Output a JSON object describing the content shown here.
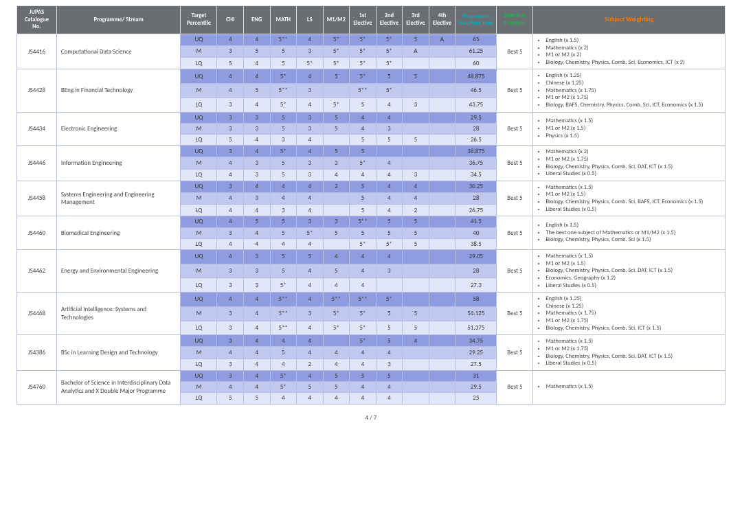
{
  "headers": {
    "no": "JUPAS Catalogue No.",
    "prog": "Programme/ Stream",
    "tp": "Target Percentile",
    "subs": [
      "CHI",
      "ENG",
      "MATH",
      "LS",
      "M1/M2",
      "1st Elective",
      "2nd Elective",
      "3rd Elective",
      "4th Elective"
    ],
    "pwt": "Programme Weighted Total",
    "sel": "Selection Principle",
    "sw": "Subject Weighting"
  },
  "footer": "4 / 7",
  "colors": {
    "header_bg": "#6a6e73",
    "header_fg": "#ffffff",
    "band_uq": "#8f9cdf",
    "band_m": "#c1c8ef",
    "band_lq": "#e2e6f9",
    "border": "#d9dde2",
    "pwt_hdr": "#00b2b2",
    "sel_hdr": "#24b24c",
    "sw_hdr": "#ff7a00"
  },
  "programmes": [
    {
      "no": "JS4416",
      "name": "Computational Data Science",
      "selection": "Best 5",
      "weighting": [
        "English (x 1.5)",
        "Mathematics (x 2)",
        "M1 or M2 (x 2)",
        "Biology, Chemistry, Physics, Comb. Sci, Economics, ICT (x 2)"
      ],
      "rows": [
        {
          "tp": "UQ",
          "v": [
            "4",
            "4",
            "5**",
            "4",
            "5*",
            "5*",
            "5*",
            "5",
            "A"
          ],
          "pwt": "65"
        },
        {
          "tp": "M",
          "v": [
            "3",
            "5",
            "5",
            "3",
            "5*",
            "5*",
            "5*",
            "A",
            ""
          ],
          "pwt": "61.25"
        },
        {
          "tp": "LQ",
          "v": [
            "5",
            "4",
            "5",
            "5*",
            "5*",
            "5*",
            "5*",
            "",
            ""
          ],
          "pwt": "60"
        }
      ]
    },
    {
      "no": "JS4428",
      "name": "BEng in Financial Technology",
      "selection": "Best 5",
      "weighting": [
        "English (x 1.25)",
        "Chinese (x 1.25)",
        "Mathematics (x 1.75)",
        "M1 or M2 (x 1.75)",
        "Biology, BAFS, Chemistry,  Physics, Comb. Sci, ICT, Economics (x 1.5)"
      ],
      "rows": [
        {
          "tp": "UQ",
          "v": [
            "4",
            "4",
            "5*",
            "4",
            "5",
            "5*",
            "5",
            "5",
            ""
          ],
          "pwt": "48.875"
        },
        {
          "tp": "M",
          "v": [
            "4",
            "5",
            "5**",
            "3",
            "",
            "5**",
            "5*",
            "",
            ""
          ],
          "pwt": "46.5"
        },
        {
          "tp": "LQ",
          "v": [
            "3",
            "4",
            "5*",
            "4",
            "5*",
            "5",
            "4",
            "3",
            ""
          ],
          "pwt": "43.75"
        }
      ]
    },
    {
      "no": "JS4434",
      "name": "Electronic Engineering",
      "selection": "Best 5",
      "weighting": [
        "Mathematics (x 1.5)",
        "M1 or M2 (x 1.5)",
        "Physics (x 1.5)"
      ],
      "rows": [
        {
          "tp": "UQ",
          "v": [
            "3",
            "3",
            "5",
            "3",
            "5",
            "4",
            "4",
            "",
            ""
          ],
          "pwt": "29.5"
        },
        {
          "tp": "M",
          "v": [
            "3",
            "3",
            "5",
            "3",
            "5",
            "4",
            "3",
            "",
            ""
          ],
          "pwt": "28"
        },
        {
          "tp": "LQ",
          "v": [
            "5",
            "4",
            "3",
            "4",
            "",
            "5",
            "5",
            "5",
            ""
          ],
          "pwt": "26.5"
        }
      ]
    },
    {
      "no": "JS4446",
      "name": "Information Engineering",
      "selection": "Best 5",
      "weighting": [
        "Mathematics (x 2)",
        "M1 or M2 (x 1.75)",
        "Biology, Chemistry, Physics, Comb. Sci, DAT, ICT (x 1.5)",
        "Liberal Studies (x 0.5)"
      ],
      "rows": [
        {
          "tp": "UQ",
          "v": [
            "3",
            "4",
            "5*",
            "4",
            "5",
            "5",
            "",
            "",
            ""
          ],
          "pwt": "38.875"
        },
        {
          "tp": "M",
          "v": [
            "4",
            "3",
            "5",
            "3",
            "3",
            "5*",
            "4",
            "",
            ""
          ],
          "pwt": "36.75"
        },
        {
          "tp": "LQ",
          "v": [
            "4",
            "3",
            "5",
            "3",
            "4",
            "4",
            "4",
            "3",
            ""
          ],
          "pwt": "34.5"
        }
      ]
    },
    {
      "no": "JS4458",
      "name": "Systems Engineering and Engineering Management",
      "selection": "Best 5",
      "weighting": [
        "Mathematics (x 1.5)",
        "M1 or M2 (x 1.5)",
        "Biology, Chemistry, Physics, Comb. Sci, BAFS, ICT, Economics (x 1.5)",
        "Liberal Studies (x 0.5)"
      ],
      "rows": [
        {
          "tp": "UQ",
          "v": [
            "3",
            "4",
            "4",
            "4",
            "2",
            "5",
            "4",
            "4",
            ""
          ],
          "pwt": "30.25"
        },
        {
          "tp": "M",
          "v": [
            "4",
            "3",
            "4",
            "4",
            "",
            "5",
            "4",
            "4",
            ""
          ],
          "pwt": "28"
        },
        {
          "tp": "LQ",
          "v": [
            "4",
            "4",
            "3",
            "4",
            "",
            "5",
            "4",
            "2",
            ""
          ],
          "pwt": "26.75"
        }
      ]
    },
    {
      "no": "JS4460",
      "name": "Biomedical Engineering",
      "selection": "Best 5",
      "weighting": [
        "English (x 1.5)",
        "The best one subject of Mathematics or M1/M2 (x 1.5)",
        "Biology, Chemistry, Physics, Comb. Sci (x 1.5)"
      ],
      "rows": [
        {
          "tp": "UQ",
          "v": [
            "4",
            "5",
            "5",
            "3",
            "3",
            "5**",
            "5",
            "5",
            ""
          ],
          "pwt": "41.5"
        },
        {
          "tp": "M",
          "v": [
            "3",
            "4",
            "5",
            "5*",
            "5",
            "5",
            "5",
            "5",
            ""
          ],
          "pwt": "40"
        },
        {
          "tp": "LQ",
          "v": [
            "4",
            "4",
            "4",
            "4",
            "",
            "5*",
            "5*",
            "5",
            ""
          ],
          "pwt": "38.5"
        }
      ]
    },
    {
      "no": "JS4462",
      "name": "Energy and Environmental Engineering",
      "selection": "Best 5",
      "weighting": [
        "Mathematics (x 1.5)",
        "M1 or M2 (x 1.5)",
        "Biology, Chemistry, Physics, Comb. Sci, DAT, ICT (x 1.5)",
        "Economics, Geography (x 1.2)",
        "Liberal Studies (x 0.5)"
      ],
      "rows": [
        {
          "tp": "UQ",
          "v": [
            "4",
            "3",
            "5",
            "5",
            "4",
            "4",
            "4",
            "",
            ""
          ],
          "pwt": "29.05"
        },
        {
          "tp": "M",
          "v": [
            "3",
            "3",
            "5",
            "4",
            "5",
            "4",
            "3",
            "",
            ""
          ],
          "pwt": "28"
        },
        {
          "tp": "LQ",
          "v": [
            "3",
            "3",
            "5*",
            "4",
            "4",
            "4",
            "",
            "",
            ""
          ],
          "pwt": "27.3"
        }
      ]
    },
    {
      "no": "JS4468",
      "name": "Artificial Intelligence: Systems and Technologies",
      "selection": "Best 5",
      "weighting": [
        "English (x 1.25)",
        "Chinese (x 1.25)",
        "Mathematics (x 1.75)",
        "M1 or M2 (x 1.75)",
        "Biology, Chemistry, Physics, Comb. Sci, ICT (x 1.5)"
      ],
      "rows": [
        {
          "tp": "UQ",
          "v": [
            "4",
            "4",
            "5**",
            "4",
            "5**",
            "5**",
            "5*",
            "",
            ""
          ],
          "pwt": "58"
        },
        {
          "tp": "M",
          "v": [
            "3",
            "4",
            "5**",
            "3",
            "5*",
            "5*",
            "5",
            "5",
            ""
          ],
          "pwt": "54.125"
        },
        {
          "tp": "LQ",
          "v": [
            "3",
            "4",
            "5**",
            "4",
            "5*",
            "5*",
            "5",
            "5",
            ""
          ],
          "pwt": "51.375"
        }
      ]
    },
    {
      "no": "JS4386",
      "name": "BSc in Learning Design and Technology",
      "selection": "Best 5",
      "weighting": [
        "Mathematics (x 1.5)",
        "M1 or M2 (x 1.75)",
        "Biology, Chemistry, Physics, Comb. Sci, DAT, ICT (x 1.5)",
        "Liberal Studies (x 0.5)"
      ],
      "rows": [
        {
          "tp": "UQ",
          "v": [
            "3",
            "4",
            "4",
            "4",
            "",
            "5*",
            "5",
            "4",
            ""
          ],
          "pwt": "34.75"
        },
        {
          "tp": "M",
          "v": [
            "4",
            "4",
            "5",
            "4",
            "4",
            "4",
            "4",
            "",
            ""
          ],
          "pwt": "29.25"
        },
        {
          "tp": "LQ",
          "v": [
            "3",
            "4",
            "4",
            "2",
            "4",
            "4",
            "3",
            "",
            ""
          ],
          "pwt": "27.5"
        }
      ]
    },
    {
      "no": "JS4760",
      "name": "Bachelor of Science in Interdisciplinary Data Analytics and X Double Major Programme",
      "selection": "Best 5",
      "weighting": [
        "Mathematics (x 1.5)"
      ],
      "rows": [
        {
          "tp": "UQ",
          "v": [
            "3",
            "4",
            "5*",
            "4",
            "5",
            "5",
            "5",
            "",
            ""
          ],
          "pwt": "31"
        },
        {
          "tp": "M",
          "v": [
            "4",
            "4",
            "5*",
            "5",
            "5",
            "4",
            "4",
            "",
            ""
          ],
          "pwt": "29.5"
        },
        {
          "tp": "LQ",
          "v": [
            "5",
            "5",
            "4",
            "4",
            "4",
            "4",
            "4",
            "",
            ""
          ],
          "pwt": "25"
        }
      ]
    }
  ]
}
